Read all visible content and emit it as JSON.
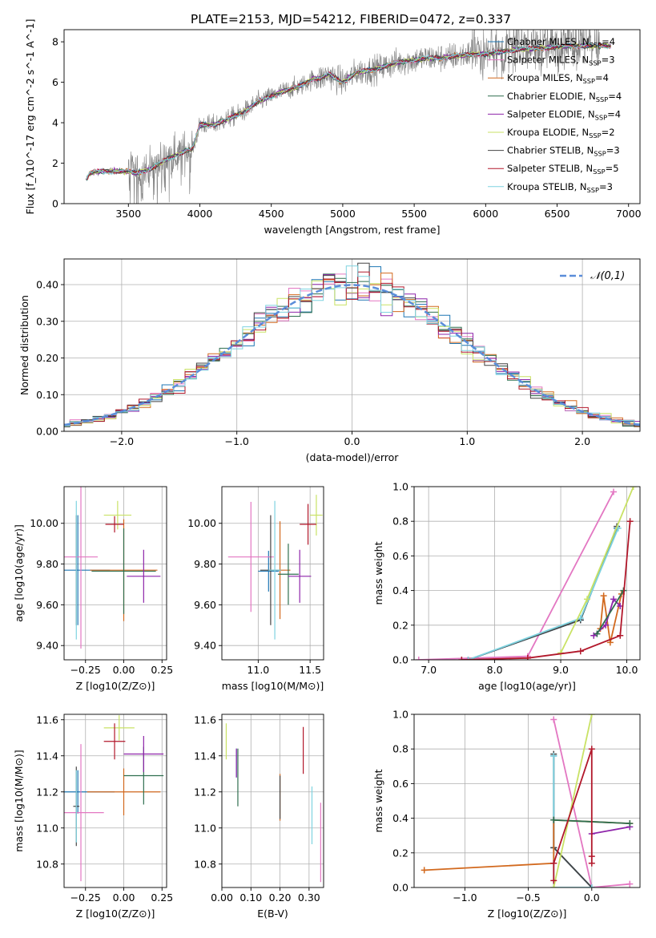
{
  "figure": {
    "title": "PLATE=2153, MJD=54212, FIBERID=0472, z=0.337"
  },
  "chart_data": [
    {
      "id": "spectrum",
      "type": "line",
      "title": "PLATE=2153, MJD=54212, FIBERID=0472, z=0.337",
      "xlabel": "wavelength [Angstrom, rest frame]",
      "ylabel": "Flux [f_λ10^-17 erg cm^-2 s^-1 A^-1]",
      "xlim": [
        3050,
        7080
      ],
      "ylim": [
        0,
        8.6
      ],
      "xticks": [
        3500,
        4000,
        4500,
        5000,
        5500,
        6000,
        6500,
        7000
      ],
      "yticks": [
        0,
        2,
        4,
        6,
        8
      ],
      "legend_position": "top-right",
      "series": [
        {
          "name": "Chabner MILES, N_SSP=4",
          "color": "#1f77b4"
        },
        {
          "name": "Salpeter MILES, N_SSP=3",
          "color": "#e377c2"
        },
        {
          "name": "Kroupa MILES, N_SSP=4",
          "color": "#d2691e"
        },
        {
          "name": "Chabrier ELODIE, N_SSP=4",
          "color": "#2f6f4f"
        },
        {
          "name": "Salpeter ELODIE, N_SSP=4",
          "color": "#8e24aa"
        },
        {
          "name": "Kroupa ELODIE, N_SSP=2",
          "color": "#c9e265"
        },
        {
          "name": "Chabrier STELIB, N_SSP=3",
          "color": "#444444"
        },
        {
          "name": "Salpeter STELIB, N_SSP=5",
          "color": "#b2182b"
        },
        {
          "name": "Kroupa STELIB, N_SSP=3",
          "color": "#7fd3e0"
        }
      ],
      "data_color": "#808080",
      "model_knots": {
        "x": [
          3200,
          3230,
          3300,
          3400,
          3500,
          3550,
          3650,
          3700,
          3800,
          3900,
          3950,
          4000,
          4100,
          4200,
          4300,
          4400,
          4500,
          4600,
          4700,
          4800,
          4850,
          4900,
          5000,
          5100,
          5200,
          5300,
          5400,
          5500,
          5600,
          5700,
          5800,
          5900,
          6000,
          6200,
          6400,
          6600,
          6800,
          6900
        ],
        "y": [
          1.1,
          1.5,
          1.6,
          1.6,
          1.6,
          1.5,
          1.7,
          1.9,
          2.3,
          2.6,
          2.7,
          3.9,
          3.9,
          4.2,
          4.5,
          5.0,
          5.3,
          5.6,
          5.8,
          6.2,
          6.2,
          6.4,
          6.0,
          6.5,
          6.6,
          6.8,
          7.0,
          7.1,
          7.2,
          7.2,
          7.3,
          7.4,
          7.4,
          7.6,
          7.7,
          7.8,
          7.8,
          7.8
        ]
      }
    },
    {
      "id": "residual-histogram",
      "type": "histogram",
      "xlabel": "(data-model)/error",
      "ylabel": "Normed distribution",
      "xlim": [
        -2.5,
        2.5
      ],
      "ylim": [
        0,
        0.47
      ],
      "xticks": [
        -2,
        -1,
        0,
        1,
        2
      ],
      "yticks": [
        0.0,
        0.1,
        0.2,
        0.3,
        0.4
      ],
      "bin_width": 0.1,
      "reference_curve": {
        "name": "𝒩(0,1)",
        "type": "gaussian",
        "mean": 0,
        "sigma": 1,
        "color": "#5b8dd9"
      },
      "legend_position": "top-right",
      "series_colors": [
        "#1f77b4",
        "#e377c2",
        "#d2691e",
        "#2f6f4f",
        "#8e24aa",
        "#c9e265",
        "#444444",
        "#b2182b",
        "#7fd3e0"
      ]
    },
    {
      "id": "age-vs-metallicity",
      "type": "errorbar",
      "xlabel": "Z [log10(Z/Z⊙)]",
      "ylabel": "age [log10(age/yr)]",
      "xlim": [
        -0.39,
        0.28
      ],
      "ylim": [
        9.33,
        10.18
      ],
      "xticks": [
        -0.25,
        0.0,
        0.25
      ],
      "yticks": [
        9.4,
        9.6,
        9.8,
        10.0
      ],
      "points": [
        {
          "x": -0.3,
          "y": 9.77,
          "xerr": 0.21,
          "yerr": 0.27,
          "color": "#1f77b4"
        },
        {
          "x": -0.28,
          "y": 9.835,
          "xerr": 0.11,
          "yerr": 0.45,
          "color": "#e377c2"
        },
        {
          "x": 0.0,
          "y": 9.77,
          "xerr": 0.22,
          "yerr": 0.25,
          "color": "#d2691e"
        },
        {
          "x": 0.0,
          "y": 9.765,
          "xerr": 0.21,
          "yerr": 0.21,
          "color": "#2f6f4f"
        },
        {
          "x": 0.13,
          "y": 9.74,
          "xerr": 0.11,
          "yerr": 0.13,
          "color": "#8e24aa"
        },
        {
          "x": -0.04,
          "y": 10.04,
          "xerr": 0.09,
          "yerr": 0.07,
          "color": "#c9e265"
        },
        {
          "x": -0.31,
          "y": 9.77,
          "xerr": 0.0,
          "yerr": 0.27,
          "color": "#444444"
        },
        {
          "x": -0.06,
          "y": 9.995,
          "xerr": 0.06,
          "yerr": 0.04,
          "color": "#b2182b"
        },
        {
          "x": -0.31,
          "y": 9.77,
          "xerr": 0.0,
          "yerr": 0.34,
          "color": "#7fd3e0"
        }
      ]
    },
    {
      "id": "age-vs-mass",
      "type": "errorbar",
      "xlabel": "mass [log10(M/M⊙)]",
      "ylabel": "",
      "xlim": [
        10.65,
        11.63
      ],
      "ylim": [
        9.33,
        10.18
      ],
      "xticks": [
        11.0,
        11.5
      ],
      "yticks": [
        9.4,
        9.6,
        9.8,
        10.0
      ],
      "points": [
        {
          "x": 11.1,
          "y": 9.765,
          "xerr": 0.1,
          "yerr": 0.1,
          "color": "#1f77b4"
        },
        {
          "x": 10.93,
          "y": 9.835,
          "xerr": 0.22,
          "yerr": 0.27,
          "color": "#e377c2"
        },
        {
          "x": 11.21,
          "y": 9.77,
          "xerr": 0.1,
          "yerr": 0.24,
          "color": "#d2691e"
        },
        {
          "x": 11.29,
          "y": 9.75,
          "xerr": 0.1,
          "yerr": 0.15,
          "color": "#2f6f4f"
        },
        {
          "x": 11.4,
          "y": 9.74,
          "xerr": 0.11,
          "yerr": 0.13,
          "color": "#8e24aa"
        },
        {
          "x": 11.56,
          "y": 10.04,
          "xerr": 0.06,
          "yerr": 0.1,
          "color": "#c9e265"
        },
        {
          "x": 11.12,
          "y": 9.77,
          "xerr": 0.1,
          "yerr": 0.27,
          "color": "#444444"
        },
        {
          "x": 11.48,
          "y": 9.995,
          "xerr": 0.08,
          "yerr": 0.1,
          "color": "#b2182b"
        },
        {
          "x": 11.16,
          "y": 9.77,
          "xerr": 0.06,
          "yerr": 0.34,
          "color": "#7fd3e0"
        }
      ]
    },
    {
      "id": "mass-weight-vs-age",
      "type": "line",
      "xlabel": "age [log10(age/yr)]",
      "ylabel": "mass weight",
      "xlim": [
        6.78,
        10.2
      ],
      "ylim": [
        0,
        1.0
      ],
      "xticks": [
        7,
        8,
        9,
        10
      ],
      "yticks": [
        0.0,
        0.2,
        0.4,
        0.6,
        0.8,
        1.0
      ],
      "series": [
        {
          "color": "#e377c2",
          "x": [
            6.85,
            8.5,
            9.8
          ],
          "y": [
            0.0,
            0.02,
            0.97
          ]
        },
        {
          "color": "#1f77b4",
          "x": [
            7.6,
            9.3,
            9.85
          ],
          "y": [
            0.0,
            0.23,
            0.76
          ]
        },
        {
          "color": "#444444",
          "x": [
            7.6,
            9.3,
            9.85
          ],
          "y": [
            0.0,
            0.23,
            0.77
          ]
        },
        {
          "color": "#7fd3e0",
          "x": [
            7.6,
            9.3,
            9.87
          ],
          "y": [
            0.0,
            0.24,
            0.76
          ]
        },
        {
          "color": "#c9e265",
          "x": [
            9.0,
            9.4,
            10.1
          ],
          "y": [
            0.04,
            0.35,
            1.0
          ]
        },
        {
          "color": "#d2691e",
          "x": [
            9.6,
            9.65,
            9.75,
            9.92
          ],
          "y": [
            0.18,
            0.37,
            0.1,
            0.38
          ]
        },
        {
          "color": "#8e24aa",
          "x": [
            9.5,
            9.68,
            9.8,
            9.9
          ],
          "y": [
            0.14,
            0.2,
            0.35,
            0.31
          ]
        },
        {
          "color": "#2f6f4f",
          "x": [
            9.55,
            9.95
          ],
          "y": [
            0.15,
            0.4
          ]
        },
        {
          "color": "#b2182b",
          "x": [
            7.5,
            8.5,
            9.3,
            9.9,
            10.05
          ],
          "y": [
            0.0,
            0.01,
            0.05,
            0.14,
            0.8
          ]
        }
      ]
    },
    {
      "id": "mass-vs-metallicity",
      "type": "errorbar",
      "xlabel": "Z [log10(Z/Z⊙)]",
      "ylabel": "mass [log10(M/M⊙)]",
      "xlim": [
        -0.39,
        0.28
      ],
      "ylim": [
        10.67,
        11.63
      ],
      "xticks": [
        -0.25,
        0.0,
        0.25
      ],
      "yticks": [
        10.8,
        11.0,
        11.2,
        11.4,
        11.6
      ],
      "points": [
        {
          "x": -0.3,
          "y": 11.2,
          "xerr": 0.24,
          "yerr": 0.12,
          "color": "#1f77b4"
        },
        {
          "x": -0.28,
          "y": 11.085,
          "xerr": 0.15,
          "yerr": 0.38,
          "color": "#e377c2"
        },
        {
          "x": 0.0,
          "y": 11.2,
          "xerr": 0.24,
          "yerr": 0.13,
          "color": "#d2691e"
        },
        {
          "x": 0.13,
          "y": 11.29,
          "xerr": 0.13,
          "yerr": 0.16,
          "color": "#2f6f4f"
        },
        {
          "x": 0.13,
          "y": 11.41,
          "xerr": 0.13,
          "yerr": 0.1,
          "color": "#8e24aa"
        },
        {
          "x": -0.03,
          "y": 11.555,
          "xerr": 0.1,
          "yerr": 0.07,
          "color": "#c9e265"
        },
        {
          "x": -0.31,
          "y": 11.12,
          "xerr": 0.02,
          "yerr": 0.22,
          "color": "#444444"
        },
        {
          "x": -0.06,
          "y": 11.48,
          "xerr": 0.07,
          "yerr": 0.1,
          "color": "#b2182b"
        },
        {
          "x": -0.31,
          "y": 11.12,
          "xerr": 0.0,
          "yerr": 0.2,
          "color": "#7fd3e0"
        }
      ]
    },
    {
      "id": "mass-vs-ebv",
      "type": "errorbar",
      "xlabel": "E(B-V)",
      "ylabel": "",
      "xlim": [
        0.0,
        0.35
      ],
      "ylim": [
        10.67,
        11.63
      ],
      "xticks": [
        0.0,
        0.1,
        0.2,
        0.3
      ],
      "yticks": [
        10.8,
        11.0,
        11.2,
        11.4,
        11.6
      ],
      "points": [
        {
          "x": 0.05,
          "y": 11.36,
          "yerr": 0.08,
          "color": "#1f77b4"
        },
        {
          "x": 0.34,
          "y": 10.92,
          "yerr": 0.22,
          "color": "#e377c2"
        },
        {
          "x": 0.2,
          "y": 11.17,
          "yerr": 0.13,
          "color": "#d2691e"
        },
        {
          "x": 0.055,
          "y": 11.28,
          "yerr": 0.16,
          "color": "#2f6f4f"
        },
        {
          "x": 0.05,
          "y": 11.36,
          "yerr": 0.08,
          "color": "#8e24aa"
        },
        {
          "x": 0.015,
          "y": 11.48,
          "yerr": 0.1,
          "color": "#c9e265"
        },
        {
          "x": 0.2,
          "y": 11.17,
          "yerr": 0.12,
          "color": "#444444"
        },
        {
          "x": 0.28,
          "y": 11.43,
          "yerr": 0.13,
          "color": "#b2182b"
        },
        {
          "x": 0.31,
          "y": 11.07,
          "yerr": 0.16,
          "color": "#7fd3e0"
        }
      ]
    },
    {
      "id": "mass-weight-vs-metallicity",
      "type": "line",
      "xlabel": "Z [log10(Z/Z⊙)]",
      "ylabel": "mass weight",
      "xlim": [
        -1.4,
        0.38
      ],
      "ylim": [
        0,
        1.0
      ],
      "xticks": [
        -1.0,
        -0.5,
        0.0
      ],
      "yticks": [
        0.0,
        0.2,
        0.4,
        0.6,
        0.8,
        1.0
      ],
      "series": [
        {
          "color": "#e377c2",
          "x": [
            -0.3,
            0.0,
            0.3
          ],
          "y": [
            0.97,
            0.0,
            0.02
          ]
        },
        {
          "color": "#1f77b4",
          "x": [
            -0.3,
            -0.3,
            0.0
          ],
          "y": [
            0.76,
            0.23,
            0.0
          ]
        },
        {
          "color": "#444444",
          "x": [
            -0.3,
            -0.3,
            0.0
          ],
          "y": [
            0.77,
            0.23,
            0.0
          ]
        },
        {
          "color": "#7fd3e0",
          "x": [
            -0.3,
            -0.3,
            0.0
          ],
          "y": [
            0.76,
            0.0,
            0.0
          ]
        },
        {
          "color": "#c9e265",
          "x": [
            -0.3,
            0.0
          ],
          "y": [
            0.0,
            1.0
          ]
        },
        {
          "color": "#d2691e",
          "x": [
            -1.32,
            -0.3,
            -0.3,
            0.3
          ],
          "y": [
            0.1,
            0.14,
            0.39,
            0.37
          ]
        },
        {
          "color": "#8e24aa",
          "x": [
            0.0,
            0.3
          ],
          "y": [
            0.31,
            0.35
          ]
        },
        {
          "color": "#2f6f4f",
          "x": [
            -0.3,
            0.3
          ],
          "y": [
            0.39,
            0.37
          ]
        },
        {
          "color": "#b2182b",
          "x": [
            -0.3,
            -0.3,
            0.0,
            0.0,
            0.0
          ],
          "y": [
            0.04,
            0.14,
            0.8,
            0.18,
            0.14
          ]
        }
      ]
    }
  ]
}
